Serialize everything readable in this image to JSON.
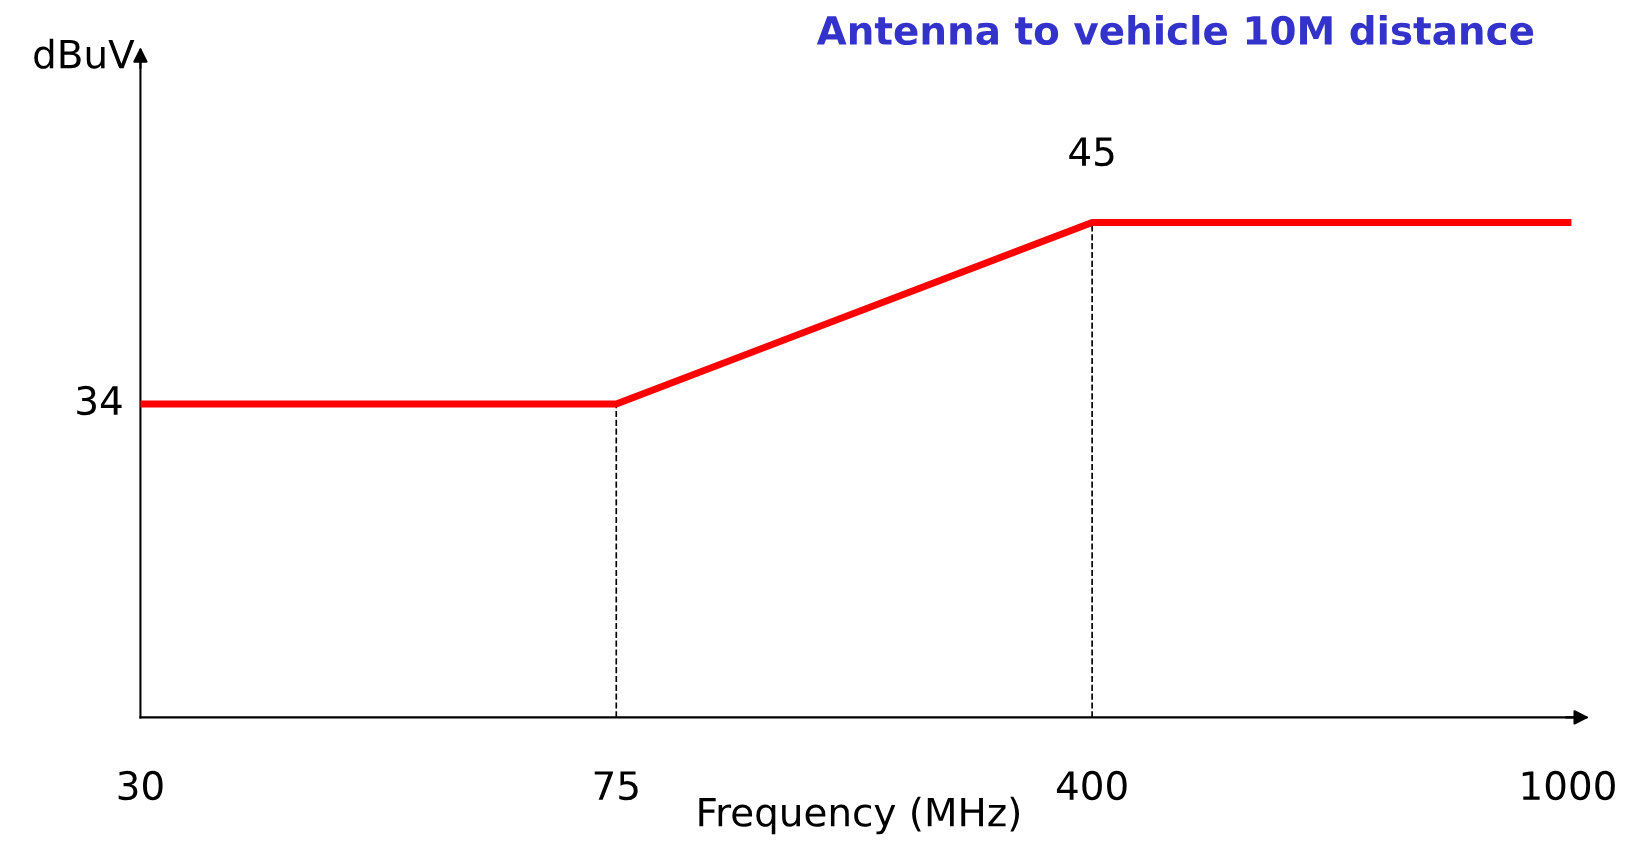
{
  "chart_data": {
    "type": "line",
    "title": "Antenna to vehicle 10M distance",
    "xlabel": "Frequency (MHz)",
    "ylabel": "dBuV",
    "categories": [
      "30",
      "75",
      "400",
      "1000"
    ],
    "series": [
      {
        "color": "#ff0000",
        "values": [
          34,
          34,
          45,
          45
        ],
        "value_labels": [
          "34",
          null,
          "45",
          null
        ]
      }
    ],
    "ylim": [
      15,
      55
    ],
    "ref_lines": [
      {
        "axis": "x",
        "value": "75",
        "color": "#000000",
        "line_style": "dashed"
      },
      {
        "axis": "x",
        "value": "400",
        "color": "#000000",
        "line_style": "dashed"
      }
    ],
    "grid": false,
    "legend": false,
    "marker": "none",
    "line_style": "solid"
  }
}
